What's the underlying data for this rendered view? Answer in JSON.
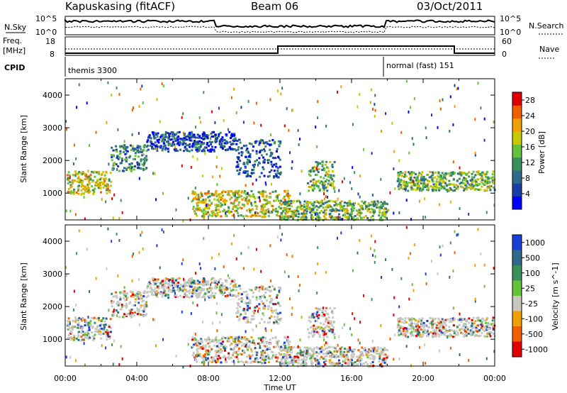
{
  "header": {
    "station": "Kapuskasing (fitACF)",
    "beam": "Beam 06",
    "date": "03/Oct/2011"
  },
  "panels": {
    "nsky": {
      "label": "N.Sky",
      "tick_hi": "10^5",
      "tick_lo": "10^0"
    },
    "nsearch": {
      "label": "N.Search"
    },
    "freq": {
      "label_1": "Freq.",
      "label_2": "[MHz]",
      "tick_hi": "18",
      "tick_lo": "8"
    },
    "nave": {
      "label": "Nave",
      "tick_hi": "60",
      "tick_lo": "0"
    },
    "cpid": {
      "label": "CPID",
      "mode_1": "themis 3300",
      "mode_2": "normal (fast) 151"
    }
  },
  "colors": {
    "power_scale": [
      "#0000ff",
      "#1a3ea8",
      "#2f6a8a",
      "#3b8f5a",
      "#66c23a",
      "#c8c800",
      "#f0a000",
      "#f06000",
      "#e00000"
    ],
    "velocity_scale": [
      "#1a3ed8",
      "#2f6a8a",
      "#3b8f5a",
      "#66c23a",
      "#c8c8c0",
      "#f0a000",
      "#f06000",
      "#e00000"
    ],
    "velocity_gray": "#c7c7c3"
  },
  "chart_data": [
    {
      "type": "heatmap",
      "name": "power",
      "ylabel": "Slant Range [km]",
      "xlabel": "Time UT",
      "yticks": [
        "1000",
        "2000",
        "3000",
        "4000"
      ],
      "ylim": [
        180,
        4500
      ],
      "xlim_hours": [
        0,
        24
      ],
      "colorbar_label": "Power [dB]",
      "colorbar_ticks": [
        "4",
        "8",
        "12",
        "16",
        "20",
        "24",
        "28"
      ],
      "colorbar_range": [
        0,
        30
      ],
      "echo_bands": [
        {
          "t0": 0.0,
          "t1": 2.5,
          "r0": 1000,
          "r1": 1700,
          "power": 18
        },
        {
          "t0": 2.5,
          "t1": 4.5,
          "r0": 1700,
          "r1": 2500,
          "power": 10
        },
        {
          "t0": 4.5,
          "t1": 9.5,
          "r0": 2300,
          "r1": 2900,
          "power": 6
        },
        {
          "t0": 9.5,
          "t1": 12.0,
          "r0": 1500,
          "r1": 2700,
          "power": 6
        },
        {
          "t0": 13.5,
          "t1": 15.0,
          "r0": 1100,
          "r1": 2000,
          "power": 14
        },
        {
          "t0": 18.5,
          "t1": 24.0,
          "r0": 1100,
          "r1": 1700,
          "power": 14
        },
        {
          "t0": 7.0,
          "t1": 12.5,
          "r0": 300,
          "r1": 1100,
          "power": 18
        },
        {
          "t0": 12.0,
          "t1": 18.0,
          "r0": 200,
          "r1": 800,
          "power": 14
        }
      ]
    },
    {
      "type": "heatmap",
      "name": "velocity",
      "ylabel": "Slant Range [km]",
      "xlabel": "Time UT",
      "yticks": [
        "1000",
        "2000",
        "3000",
        "4000"
      ],
      "ylim": [
        180,
        4500
      ],
      "xlim_hours": [
        0,
        24
      ],
      "colorbar_label": "Velocity [m s^-1]",
      "colorbar_ticks": [
        "1000",
        "500",
        "100",
        "25",
        "-25",
        "-100",
        "-500",
        "-1000"
      ],
      "xticks": [
        "00:00",
        "04:00",
        "08:00",
        "12:00",
        "16:00",
        "20:00",
        "00:00"
      ]
    }
  ]
}
